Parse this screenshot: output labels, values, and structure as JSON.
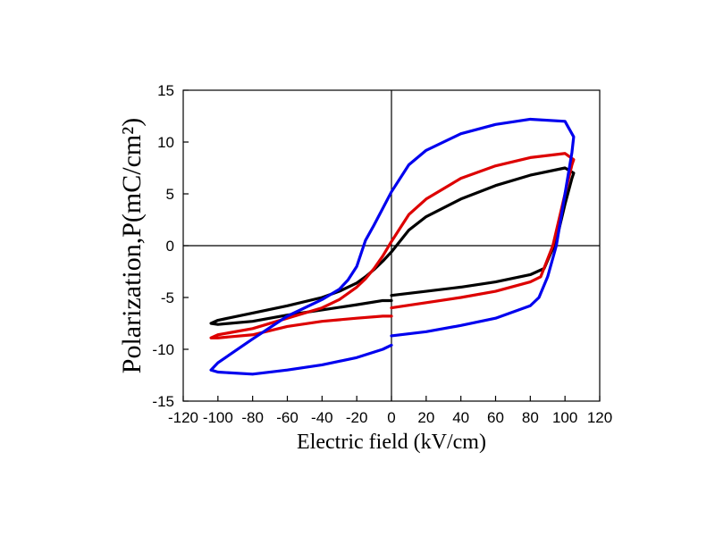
{
  "chart_data": {
    "type": "line",
    "title": "",
    "xlabel": "Electric field (kV/cm)",
    "ylabel": "Polarization,P(mC/cm²)",
    "xlim": [
      -120,
      120
    ],
    "ylim": [
      -15,
      15
    ],
    "x_ticks": [
      -120,
      -100,
      -80,
      -60,
      -40,
      -20,
      0,
      20,
      40,
      60,
      80,
      100,
      120
    ],
    "y_ticks": [
      -15,
      -10,
      -5,
      0,
      5,
      10,
      15
    ],
    "x_tick_labels": [
      "-120",
      "-100",
      "-80",
      "-60",
      "-40",
      "-20",
      "0",
      "20",
      "40",
      "60",
      "80",
      "100",
      "120"
    ],
    "y_tick_labels": [
      "-15",
      "-10",
      "-5",
      "0",
      "5",
      "10",
      "15"
    ],
    "zero_lines": true,
    "grid": false,
    "legend": "none",
    "series": [
      {
        "color": "#000000",
        "x": [
          0,
          20,
          40,
          60,
          80,
          88,
          95,
          100,
          104,
          105,
          100,
          80,
          60,
          40,
          20,
          10,
          0,
          -5,
          -10,
          -15,
          -20,
          -30,
          -40,
          -60,
          -80,
          -100,
          -104,
          -100,
          -80,
          -60,
          -40,
          -20,
          -5,
          0
        ],
        "y": [
          -4.8,
          -4.4,
          -4,
          -3.5,
          -2.8,
          -2.2,
          0.5,
          4,
          6.5,
          7,
          7.5,
          6.8,
          5.8,
          4.5,
          2.8,
          1.5,
          -0.6,
          -1.5,
          -2.3,
          -3,
          -3.6,
          -4.4,
          -5,
          -5.8,
          -6.5,
          -7.2,
          -7.5,
          -7.6,
          -7.3,
          -6.7,
          -6.2,
          -5.7,
          -5.3,
          -5.3
        ]
      },
      {
        "color": "#dd0000",
        "x": [
          0,
          20,
          40,
          60,
          80,
          86,
          93,
          100,
          104,
          105,
          100,
          80,
          60,
          40,
          20,
          10,
          0,
          -5,
          -10,
          -15,
          -20,
          -30,
          -40,
          -60,
          -80,
          -100,
          -104,
          -100,
          -80,
          -60,
          -40,
          -20,
          -5,
          0
        ],
        "y": [
          -6,
          -5.5,
          -5,
          -4.4,
          -3.5,
          -3,
          0,
          5,
          7.8,
          8.3,
          8.9,
          8.5,
          7.7,
          6.5,
          4.5,
          3,
          0.4,
          -1,
          -2.2,
          -3.2,
          -4,
          -5.2,
          -6,
          -7,
          -8,
          -8.6,
          -8.9,
          -8.9,
          -8.6,
          -7.8,
          -7.3,
          -7,
          -6.8,
          -6.8
        ]
      },
      {
        "color": "#0000ee",
        "x": [
          0,
          20,
          40,
          60,
          80,
          85,
          90,
          95,
          100,
          104,
          105,
          100,
          80,
          60,
          40,
          20,
          10,
          0,
          -5,
          -10,
          -15,
          -18,
          -20,
          -25,
          -30,
          -40,
          -60,
          -80,
          -100,
          -104,
          -100,
          -80,
          -60,
          -40,
          -20,
          -5,
          0
        ],
        "y": [
          -8.7,
          -8.3,
          -7.7,
          -7,
          -5.8,
          -5,
          -3,
          0,
          5,
          9,
          10.5,
          12,
          12.2,
          11.7,
          10.8,
          9.2,
          7.8,
          5.2,
          3.6,
          2,
          0.5,
          -1,
          -2,
          -3.3,
          -4.2,
          -5.2,
          -6.8,
          -9,
          -11.3,
          -12,
          -12.2,
          -12.4,
          -12,
          -11.5,
          -10.8,
          -10,
          -9.6
        ]
      }
    ]
  }
}
